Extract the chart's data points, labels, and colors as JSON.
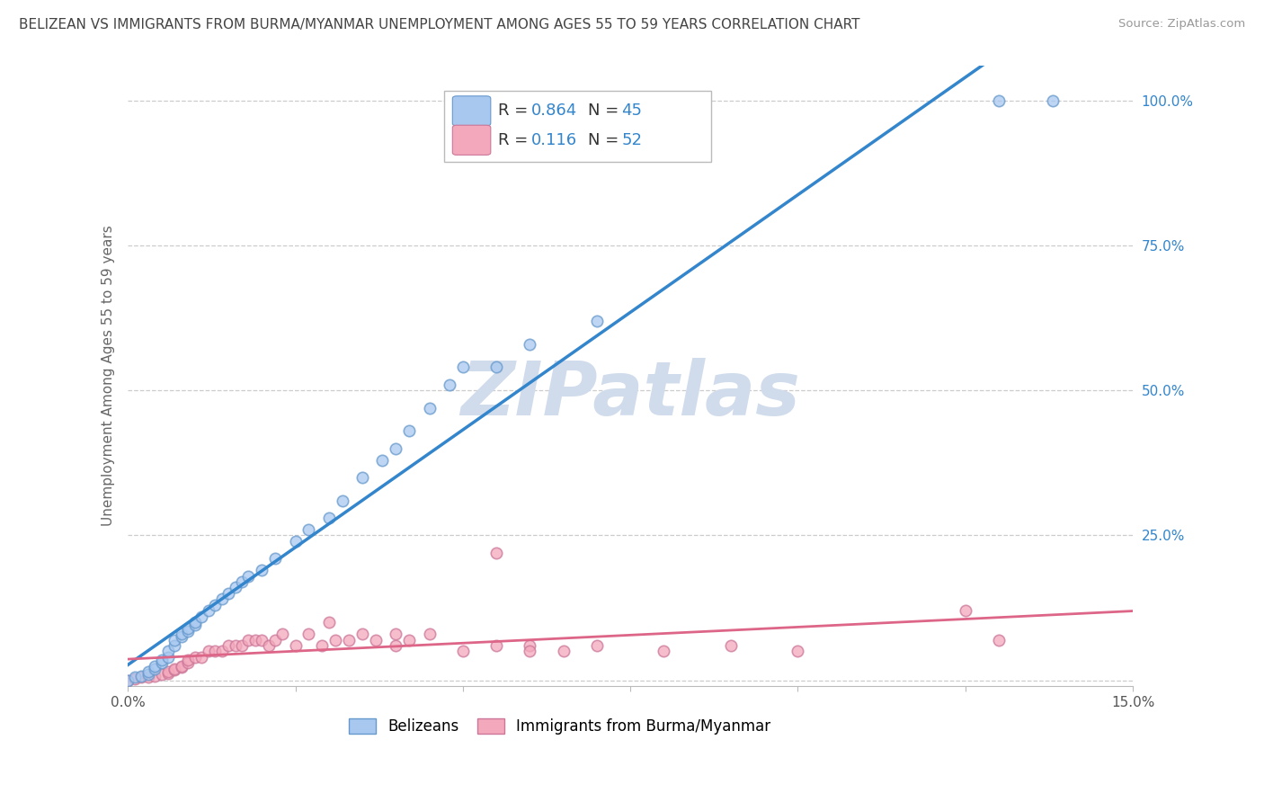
{
  "title": "BELIZEAN VS IMMIGRANTS FROM BURMA/MYANMAR UNEMPLOYMENT AMONG AGES 55 TO 59 YEARS CORRELATION CHART",
  "source": "Source: ZipAtlas.com",
  "ylabel": "Unemployment Among Ages 55 to 59 years",
  "xlim": [
    0.0,
    0.15
  ],
  "ylim": [
    -0.01,
    1.06
  ],
  "xticks": [
    0.0,
    0.025,
    0.05,
    0.075,
    0.1,
    0.125,
    0.15
  ],
  "xticklabels": [
    "0.0%",
    "",
    "",
    "",
    "",
    "",
    "15.0%"
  ],
  "yticks": [
    0.0,
    0.25,
    0.5,
    0.75,
    1.0
  ],
  "yticklabels": [
    "",
    "25.0%",
    "50.0%",
    "75.0%",
    "100.0%"
  ],
  "blue_color": "#a8c8f0",
  "pink_color": "#f4a8bc",
  "blue_edge_color": "#6699cc",
  "pink_edge_color": "#cc7799",
  "blue_line_color": "#3385cc",
  "pink_line_color": "#dd6688",
  "watermark_color": "#d0dcec",
  "background_color": "#ffffff",
  "grid_color": "#cccccc",
  "title_fontsize": 11,
  "axis_fontsize": 11,
  "legend_fontsize": 13,
  "blue_scatter_x": [
    0.0,
    0.001,
    0.002,
    0.003,
    0.003,
    0.004,
    0.004,
    0.005,
    0.005,
    0.006,
    0.006,
    0.007,
    0.007,
    0.008,
    0.008,
    0.009,
    0.009,
    0.01,
    0.01,
    0.011,
    0.012,
    0.013,
    0.014,
    0.015,
    0.016,
    0.017,
    0.018,
    0.02,
    0.022,
    0.025,
    0.027,
    0.03,
    0.032,
    0.035,
    0.038,
    0.04,
    0.042,
    0.045,
    0.048,
    0.05,
    0.055,
    0.06,
    0.07,
    0.13,
    0.138
  ],
  "blue_scatter_y": [
    0.0,
    0.005,
    0.008,
    0.01,
    0.015,
    0.02,
    0.025,
    0.03,
    0.035,
    0.04,
    0.05,
    0.06,
    0.07,
    0.075,
    0.08,
    0.085,
    0.09,
    0.095,
    0.1,
    0.11,
    0.12,
    0.13,
    0.14,
    0.15,
    0.16,
    0.17,
    0.18,
    0.19,
    0.21,
    0.24,
    0.26,
    0.28,
    0.31,
    0.35,
    0.38,
    0.4,
    0.43,
    0.47,
    0.51,
    0.54,
    0.54,
    0.58,
    0.62,
    1.0,
    1.0
  ],
  "pink_scatter_x": [
    0.0,
    0.001,
    0.002,
    0.003,
    0.004,
    0.005,
    0.006,
    0.006,
    0.007,
    0.007,
    0.008,
    0.008,
    0.009,
    0.009,
    0.01,
    0.011,
    0.012,
    0.013,
    0.014,
    0.015,
    0.016,
    0.017,
    0.018,
    0.019,
    0.02,
    0.021,
    0.022,
    0.023,
    0.025,
    0.027,
    0.029,
    0.031,
    0.033,
    0.035,
    0.037,
    0.04,
    0.042,
    0.045,
    0.05,
    0.055,
    0.06,
    0.065,
    0.07,
    0.08,
    0.09,
    0.1,
    0.055,
    0.04,
    0.03,
    0.125,
    0.13,
    0.06
  ],
  "pink_scatter_y": [
    0.0,
    0.003,
    0.005,
    0.006,
    0.008,
    0.01,
    0.012,
    0.015,
    0.018,
    0.02,
    0.022,
    0.025,
    0.03,
    0.035,
    0.04,
    0.04,
    0.05,
    0.05,
    0.05,
    0.06,
    0.06,
    0.06,
    0.07,
    0.07,
    0.07,
    0.06,
    0.07,
    0.08,
    0.06,
    0.08,
    0.06,
    0.07,
    0.07,
    0.08,
    0.07,
    0.06,
    0.07,
    0.08,
    0.05,
    0.06,
    0.06,
    0.05,
    0.06,
    0.05,
    0.06,
    0.05,
    0.22,
    0.08,
    0.1,
    0.12,
    0.07,
    0.05
  ]
}
